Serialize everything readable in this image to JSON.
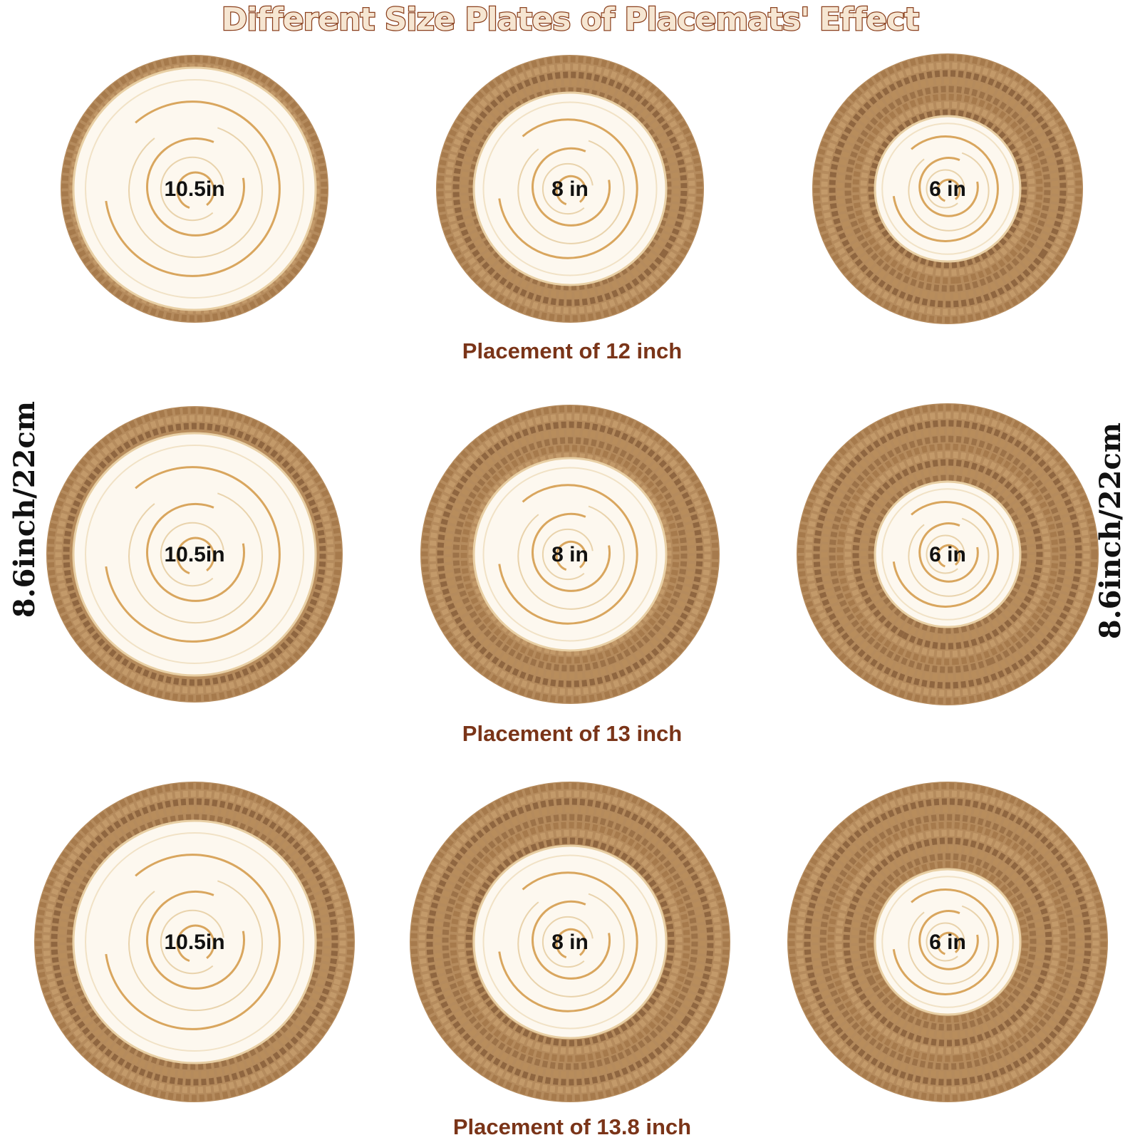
{
  "title": "Different Size Plates of Placemats' Effect",
  "side_labels": [
    "8.6inch/22cm",
    "8.6inch/22cm"
  ],
  "rows": [
    {
      "caption": "Placement of 12 inch",
      "plates": [
        "10.5in",
        "8 in",
        "6 in"
      ]
    },
    {
      "caption": "Placement of 13 inch",
      "plates": [
        "10.5in",
        "8 in",
        "6 in"
      ]
    },
    {
      "caption": "Placement of 13.8 inch",
      "plates": [
        "10.5in",
        "8 in",
        "6 in"
      ]
    }
  ]
}
